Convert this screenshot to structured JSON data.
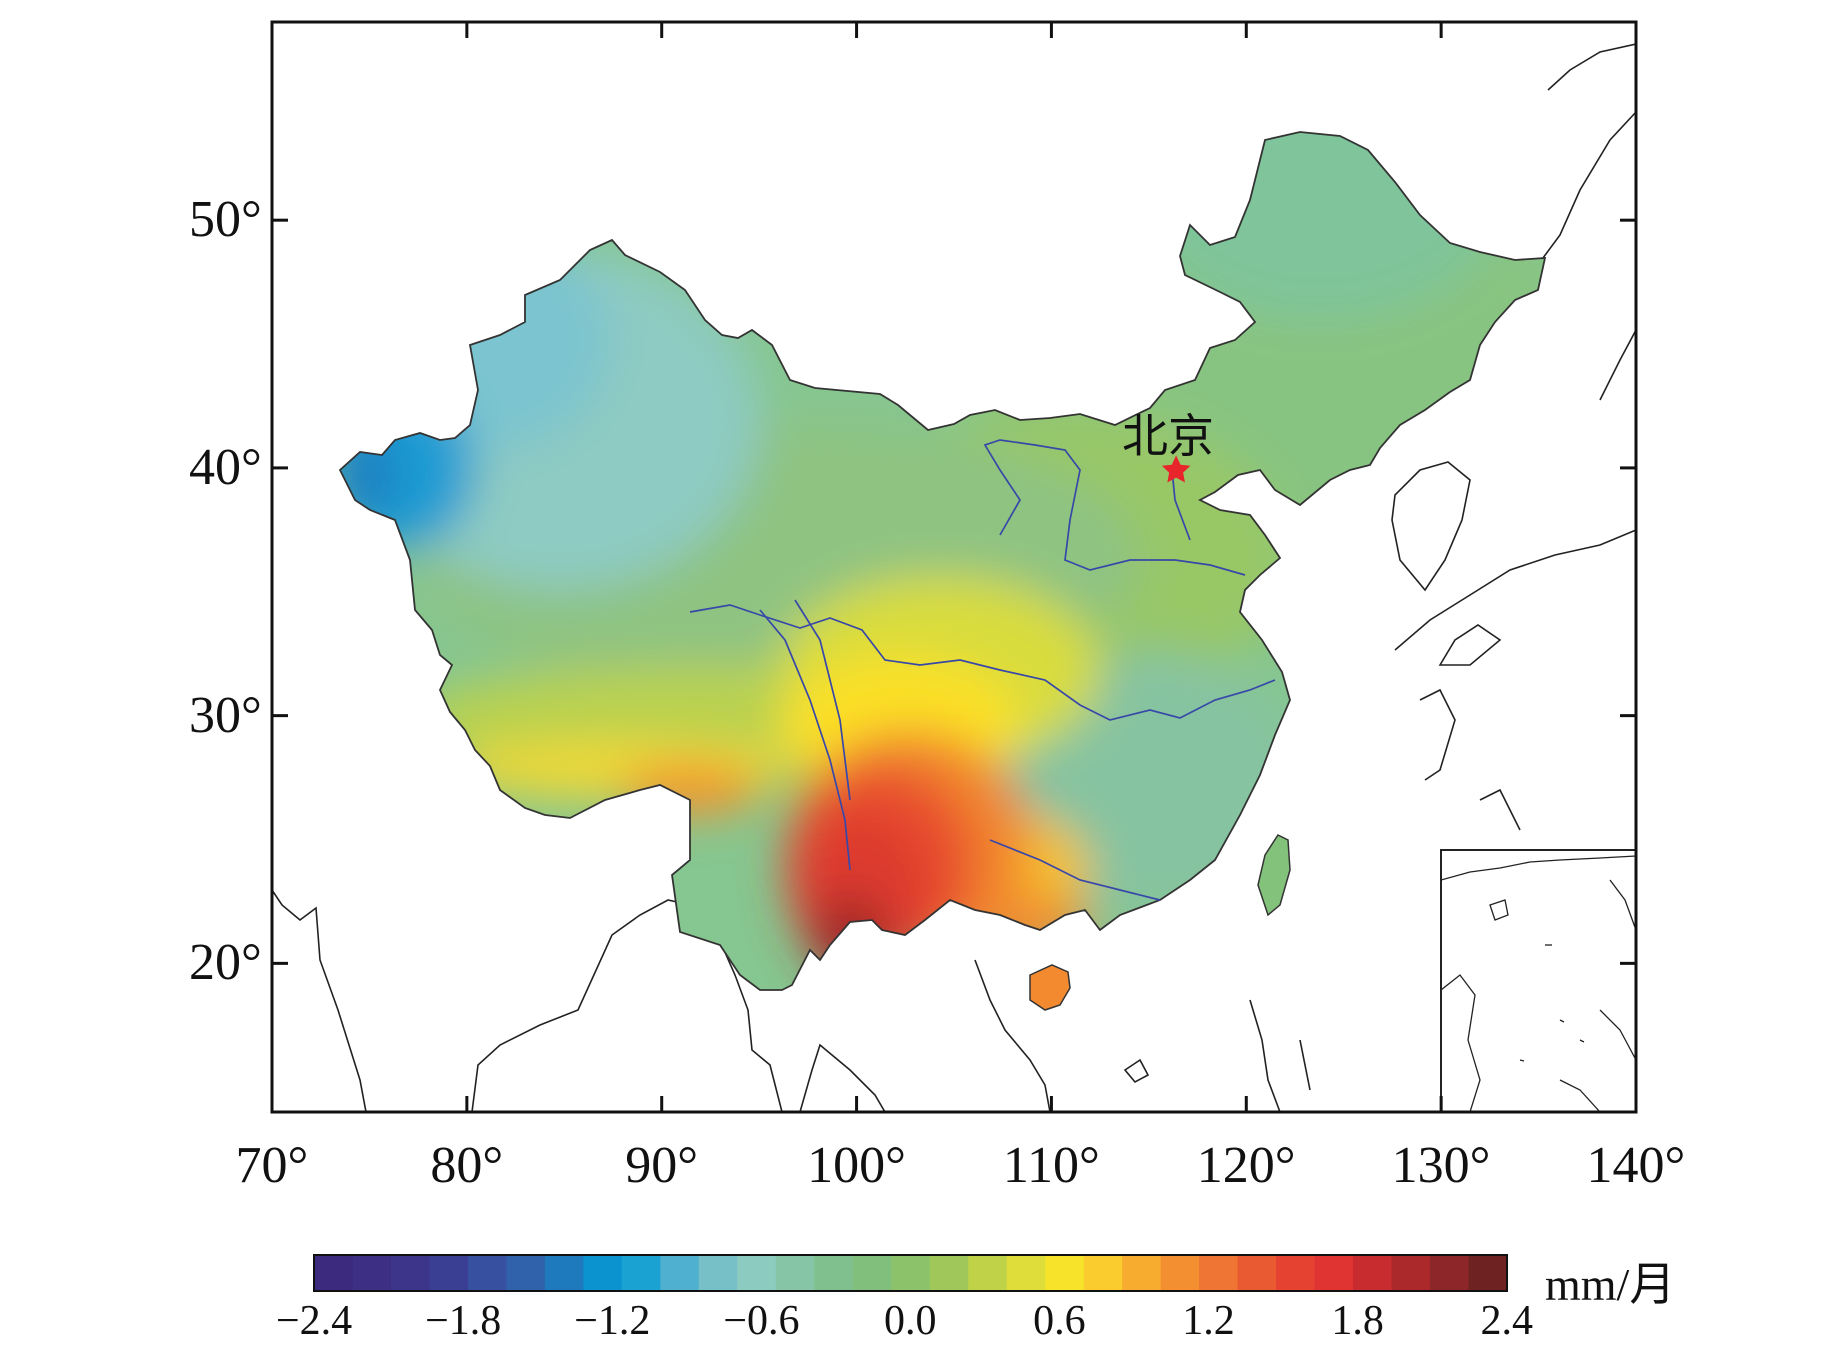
{
  "map": {
    "lon_ticks": [
      "70°",
      "80°",
      "90°",
      "100°",
      "110°",
      "120°",
      "130°",
      "140°"
    ],
    "lat_ticks": [
      "20°",
      "30°",
      "40°",
      "50°"
    ],
    "lon_range": [
      70,
      140
    ],
    "lat_range": [
      14,
      58
    ],
    "city": {
      "label": "北京",
      "lon": 116.4,
      "lat": 39.9,
      "marker": "star-icon",
      "color": "#e8252b"
    },
    "inset": "south-china-sea-islands"
  },
  "colorbar": {
    "units": "mm/月",
    "ticks": [
      "−2.4",
      "−1.8",
      "−1.2",
      "−0.6",
      "0.0",
      "0.6",
      "1.2",
      "1.8",
      "2.4"
    ],
    "min": -2.4,
    "max": 2.4,
    "colors": [
      "#3b2a7e",
      "#3c2f84",
      "#3d358a",
      "#3b3f93",
      "#37509f",
      "#2f62ab",
      "#1f79bd",
      "#0b93cf",
      "#1aa2d2",
      "#4fb1cf",
      "#78c0c8",
      "#8ccbbf",
      "#86c6a7",
      "#80c08e",
      "#80bf7c",
      "#8cc26a",
      "#9fc75a",
      "#bfd248",
      "#dedd39",
      "#f7e42a",
      "#fbcc2d",
      "#f8ac2f",
      "#f38f31",
      "#ee7533",
      "#e95a33",
      "#e54232",
      "#df3431",
      "#c92c2e",
      "#ab292b",
      "#8c2628",
      "#6e2322"
    ]
  }
}
